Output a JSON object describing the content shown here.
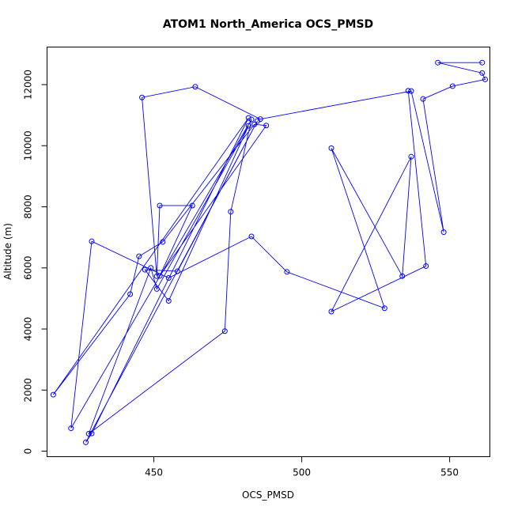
{
  "chart_data": {
    "type": "line",
    "title": "ATOM1 North_America OCS_PMSD",
    "xlabel": "OCS_PMSD",
    "ylabel": "Altitude (m)",
    "xlim": [
      413.9,
      563.6
    ],
    "ylim": [
      -180,
      13230
    ],
    "x_ticks": [
      450,
      500,
      550
    ],
    "y_ticks": [
      0,
      2000,
      4000,
      6000,
      8000,
      10000,
      12000
    ],
    "marker": "open-circle",
    "line_color": "#0000ff",
    "series": [
      {
        "x": [
          561,
          546,
          561,
          562,
          551,
          541,
          548,
          537,
          486,
          464,
          446,
          451,
          452,
          463,
          452,
          488,
          484,
          453,
          445,
          442,
          416,
          482,
          429,
          427,
          485,
          458,
          447,
          455,
          482,
          451,
          449,
          428,
          474,
          476,
          483,
          422,
          429,
          455,
          483,
          495,
          528,
          510,
          534,
          537,
          510,
          542,
          536
        ],
        "y": [
          12720,
          12720,
          12380,
          12170,
          11950,
          11530,
          7170,
          11790,
          10870,
          11930,
          11580,
          5730,
          8040,
          8040,
          5740,
          10660,
          10700,
          6850,
          6380,
          5140,
          1850,
          10910,
          580,
          290,
          10810,
          5890,
          5940,
          4920,
          10650,
          5310,
          6000,
          570,
          3930,
          7840,
          10860,
          750,
          6870,
          5670,
          7030,
          5870,
          4680,
          9920,
          5730,
          9640,
          4570,
          6060,
          11800
        ]
      }
    ]
  }
}
